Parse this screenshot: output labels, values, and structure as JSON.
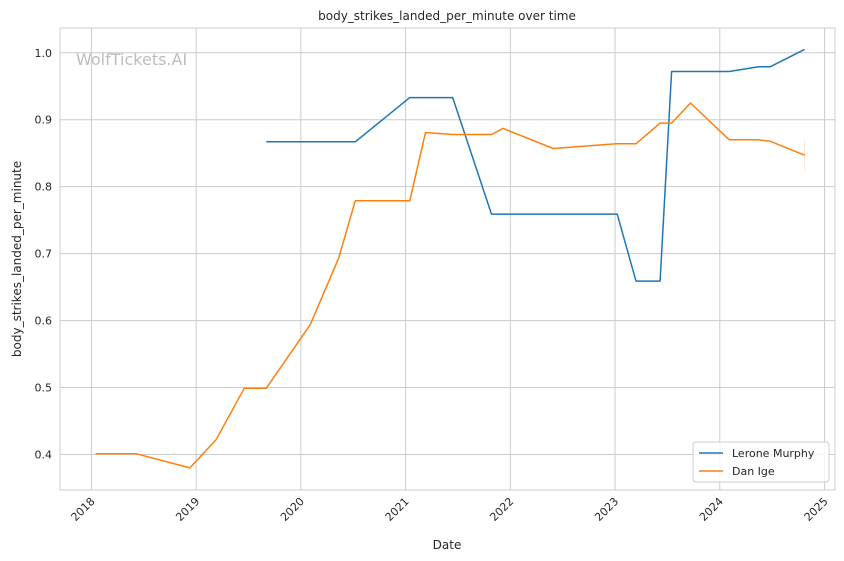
{
  "chart_data": {
    "type": "line",
    "title": "body_strikes_landed_per_minute over time",
    "xlabel": "Date",
    "ylabel": "body_strikes_landed_per_minute",
    "watermark": "WolfTickets.AI",
    "xlim": [
      2017.7,
      2025.1
    ],
    "ylim": [
      0.347,
      1.037
    ],
    "xticks": [
      2018,
      2019,
      2020,
      2021,
      2022,
      2023,
      2024,
      2025
    ],
    "xtick_labels": [
      "2018",
      "2019",
      "2020",
      "2021",
      "2022",
      "2023",
      "2024",
      "2025"
    ],
    "yticks": [
      0.4,
      0.5,
      0.6,
      0.7,
      0.8,
      0.9,
      1.0
    ],
    "ytick_labels": [
      "0.4",
      "0.5",
      "0.6",
      "0.7",
      "0.8",
      "0.9",
      "1.0"
    ],
    "grid": true,
    "legend_position": "bottom-right",
    "series": [
      {
        "name": "Lerone Murphy",
        "color": "#1f77b4",
        "x": [
          2019.67,
          2020.52,
          2021.04,
          2021.45,
          2021.82,
          2023.02,
          2023.2,
          2023.43,
          2023.54,
          2024.09,
          2024.37,
          2024.48,
          2024.81
        ],
        "y": [
          0.867,
          0.867,
          0.933,
          0.933,
          0.759,
          0.759,
          0.659,
          0.659,
          0.972,
          0.972,
          0.979,
          0.979,
          1.005
        ]
      },
      {
        "name": "Dan Ige",
        "color": "#ff7f0e",
        "x": [
          2018.04,
          2018.43,
          2018.94,
          2019.19,
          2019.46,
          2019.67,
          2020.09,
          2020.36,
          2020.52,
          2021.04,
          2021.19,
          2021.45,
          2021.82,
          2021.93,
          2022.41,
          2023.01,
          2023.2,
          2023.43,
          2023.54,
          2023.72,
          2024.09,
          2024.37,
          2024.48,
          2024.81
        ],
        "y": [
          0.401,
          0.401,
          0.38,
          0.422,
          0.499,
          0.499,
          0.594,
          0.693,
          0.779,
          0.779,
          0.881,
          0.878,
          0.878,
          0.887,
          0.857,
          0.864,
          0.864,
          0.895,
          0.895,
          0.925,
          0.87,
          0.87,
          0.868,
          0.847
        ],
        "last_point_error": [
          0.823,
          0.87
        ]
      }
    ]
  }
}
